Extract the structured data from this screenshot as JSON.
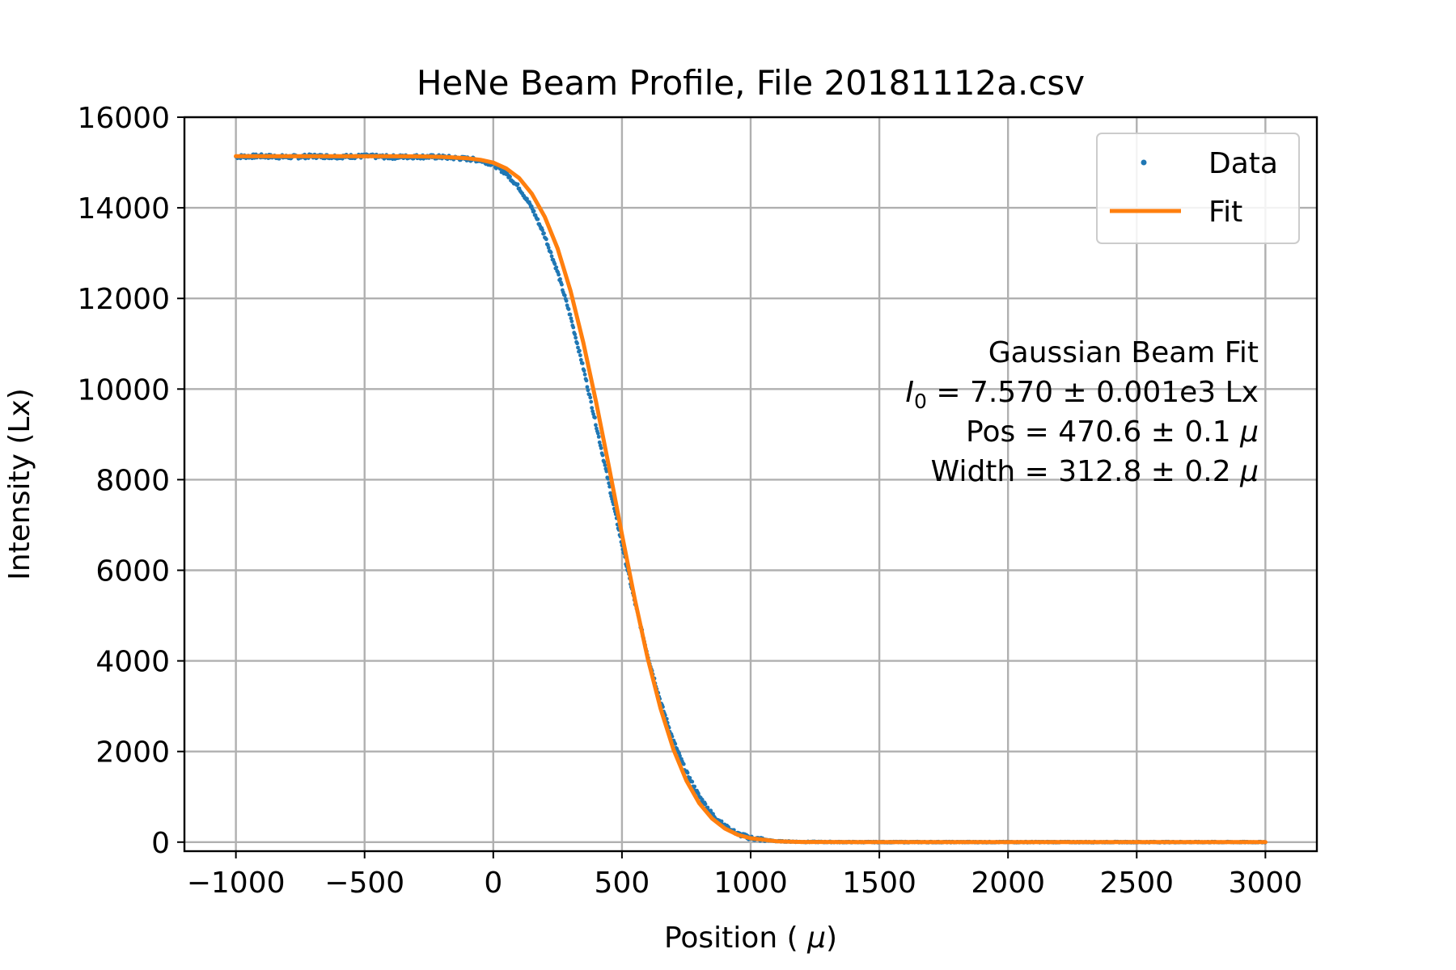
{
  "chart_data": {
    "type": "scatter",
    "title": "HeNe Beam Profile, File 20181112a.csv",
    "xlabel": "Position (μ)",
    "ylabel": "Intensity (Lx)",
    "xlim": [
      -1200,
      3200
    ],
    "ylim": [
      -200,
      16000
    ],
    "xticks": [
      -1000,
      -500,
      0,
      500,
      1000,
      1500,
      2000,
      2500,
      3000
    ],
    "xtick_labels": [
      "−1000",
      "−500",
      "0",
      "500",
      "1000",
      "1500",
      "2000",
      "2500",
      "3000"
    ],
    "yticks": [
      0,
      2000,
      4000,
      6000,
      8000,
      10000,
      12000,
      14000,
      16000
    ],
    "ytick_labels": [
      "0",
      "2000",
      "4000",
      "6000",
      "8000",
      "10000",
      "12000",
      "14000",
      "16000"
    ],
    "grid": true,
    "legend_position": "top-right",
    "series": [
      {
        "name": "Data",
        "kind": "points",
        "color": "#1f77b4",
        "x": [
          -1000,
          -900,
          -800,
          -700,
          -600,
          -500,
          -400,
          -300,
          -200,
          -100,
          -50,
          0,
          50,
          100,
          150,
          200,
          250,
          300,
          350,
          400,
          450,
          500,
          550,
          600,
          650,
          700,
          750,
          800,
          850,
          900,
          950,
          1000,
          1100,
          1200,
          1400,
          1600,
          1800,
          2000,
          2200,
          2400,
          2600,
          2800,
          3000
        ],
        "y": [
          15130,
          15140,
          15120,
          15140,
          15130,
          15140,
          15120,
          15130,
          15120,
          15080,
          15050,
          14960,
          14760,
          14450,
          14000,
          13380,
          12580,
          11600,
          10460,
          9200,
          7880,
          6560,
          5290,
          4130,
          3100,
          2230,
          1540,
          1010,
          620,
          350,
          180,
          90,
          20,
          5,
          0,
          0,
          0,
          0,
          0,
          0,
          0,
          0,
          0
        ]
      },
      {
        "name": "Fit",
        "kind": "line",
        "color": "#ff7f0e",
        "x": [
          -1000,
          -900,
          -800,
          -700,
          -600,
          -500,
          -400,
          -300,
          -200,
          -100,
          -50,
          0,
          50,
          100,
          150,
          200,
          250,
          300,
          350,
          400,
          450,
          500,
          550,
          600,
          650,
          700,
          750,
          800,
          850,
          900,
          950,
          1000,
          1100,
          1200,
          1400,
          1600,
          1800,
          2000,
          2200,
          2400,
          2600,
          2800,
          3000
        ],
        "y": [
          15140,
          15140,
          15140,
          15140,
          15140,
          15140,
          15139,
          15136,
          15126,
          15093,
          15060,
          14998,
          14870,
          14660,
          14310,
          13800,
          13100,
          12170,
          11020,
          9700,
          8270,
          6790,
          5360,
          4060,
          2950,
          2050,
          1360,
          860,
          520,
          300,
          160,
          85,
          20,
          4,
          0,
          0,
          0,
          0,
          0,
          0,
          0,
          0,
          0
        ]
      }
    ],
    "annotation": {
      "title": "Gaussian Beam Fit",
      "i0_symbol": "I",
      "i0_subscript": "0",
      "i0_value": " = 7.570 ± 0.001e3 Lx",
      "pos_value": "Pos = 470.6 ± 0.1 ",
      "width_value": "Width = 312.8 ± 0.2 ",
      "unit_symbol": "μ"
    }
  }
}
